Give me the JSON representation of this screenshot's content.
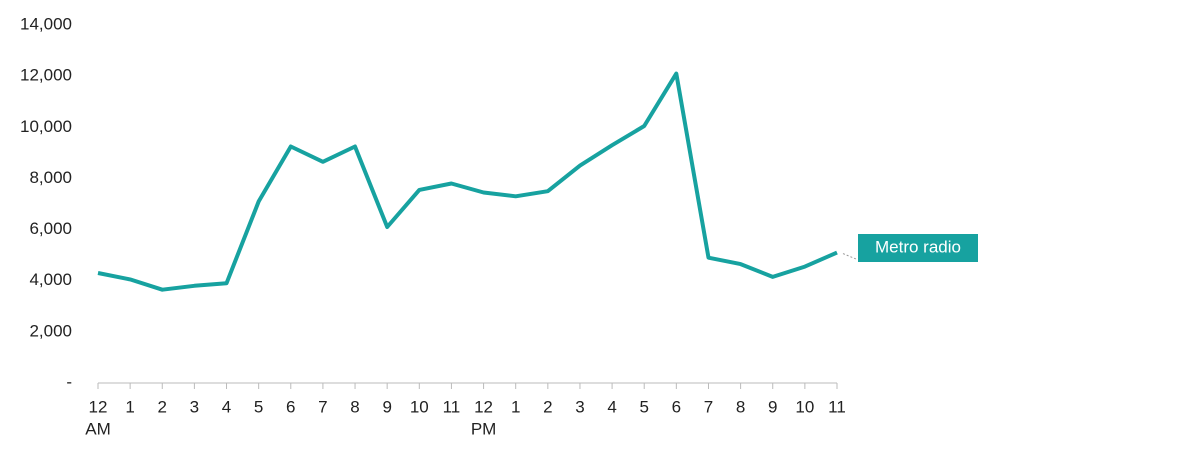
{
  "chart_data": {
    "type": "line",
    "categories": [
      "12",
      "1",
      "2",
      "3",
      "4",
      "5",
      "6",
      "7",
      "8",
      "9",
      "10",
      "11",
      "12",
      "1",
      "2",
      "3",
      "4",
      "5",
      "6",
      "7",
      "8",
      "9",
      "10",
      "11"
    ],
    "x_sublabels": [
      "AM",
      null,
      null,
      null,
      null,
      null,
      null,
      null,
      null,
      null,
      null,
      null,
      "PM",
      null,
      null,
      null,
      null,
      null,
      null,
      null,
      null,
      null,
      null,
      null
    ],
    "series": [
      {
        "name": "Metro radio",
        "color": "#17a2a0",
        "values": [
          4300,
          4050,
          3650,
          3800,
          3900,
          7100,
          9250,
          8650,
          9250,
          6100,
          7550,
          7800,
          7450,
          7300,
          7500,
          8500,
          9300,
          10050,
          12100,
          4900,
          4650,
          4150,
          4550,
          5100
        ]
      }
    ],
    "ylim": [
      0,
      14000
    ],
    "yticks": [
      {
        "value": 0,
        "label": "-"
      },
      {
        "value": 2000,
        "label": "2,000"
      },
      {
        "value": 4000,
        "label": "4,000"
      },
      {
        "value": 6000,
        "label": "6,000"
      },
      {
        "value": 8000,
        "label": "8,000"
      },
      {
        "value": 10000,
        "label": "10,000"
      },
      {
        "value": 12000,
        "label": "12,000"
      },
      {
        "value": 14000,
        "label": "14,000"
      }
    ],
    "grid": false
  }
}
